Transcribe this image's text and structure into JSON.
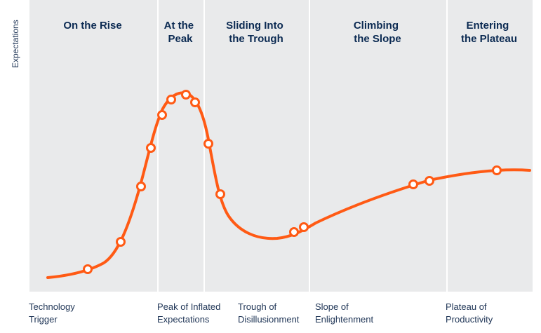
{
  "y_axis_label": "Expectations",
  "phases": [
    {
      "title_lines": [
        "On the Rise"
      ]
    },
    {
      "title_lines": [
        "At the",
        "Peak"
      ]
    },
    {
      "title_lines": [
        "Sliding Into",
        "the Trough"
      ]
    },
    {
      "title_lines": [
        "Climbing",
        "the Slope"
      ]
    },
    {
      "title_lines": [
        "Entering",
        "the Plateau"
      ]
    }
  ],
  "stages": [
    {
      "lines": [
        "Technology",
        "Trigger"
      ]
    },
    {
      "lines": [
        "Peak of Inflated",
        "Expectations"
      ]
    },
    {
      "lines": [
        "Trough of",
        "Disillusionment"
      ]
    },
    {
      "lines": [
        "Slope of",
        "Enlightenment"
      ]
    },
    {
      "lines": [
        "Plateau of",
        "Productivity"
      ]
    }
  ],
  "colors": {
    "curve": "#ff5a14",
    "phase_title": "#0b2a52",
    "band": "#e9eaeb"
  }
}
